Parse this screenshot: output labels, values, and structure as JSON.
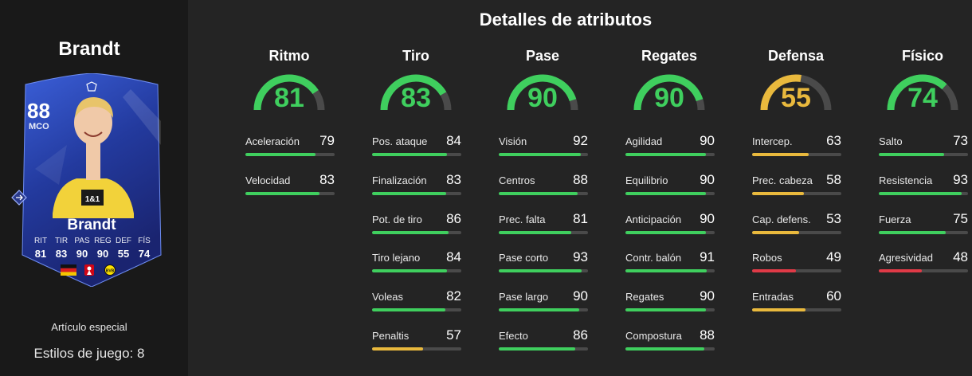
{
  "player": {
    "name": "Brandt",
    "card": {
      "rating": "88",
      "position": "MCO",
      "name": "Brandt",
      "stats": [
        {
          "label": "RIT",
          "value": "81"
        },
        {
          "label": "TIR",
          "value": "83"
        },
        {
          "label": "PAS",
          "value": "90"
        },
        {
          "label": "REG",
          "value": "90"
        },
        {
          "label": "DEF",
          "value": "55"
        },
        {
          "label": "FÍS",
          "value": "74"
        }
      ],
      "sponsor_text": "1&1"
    },
    "item_type": "Artículo especial",
    "playstyles": "Estilos de juego: 8"
  },
  "attributes": {
    "title": "Detalles de atributos",
    "colors": {
      "high": "#3fcf5e",
      "mid": "#e9b93d",
      "low": "#e03a47",
      "track": "#4a4a4a"
    },
    "categories": [
      {
        "title": "Ritmo",
        "value": 81,
        "stats": [
          {
            "label": "Aceleración",
            "value": 79
          },
          {
            "label": "Velocidad",
            "value": 83
          }
        ]
      },
      {
        "title": "Tiro",
        "value": 83,
        "stats": [
          {
            "label": "Pos. ataque",
            "value": 84
          },
          {
            "label": "Finalización",
            "value": 83
          },
          {
            "label": "Pot. de tiro",
            "value": 86
          },
          {
            "label": "Tiro lejano",
            "value": 84
          },
          {
            "label": "Voleas",
            "value": 82
          },
          {
            "label": "Penaltis",
            "value": 57
          }
        ]
      },
      {
        "title": "Pase",
        "value": 90,
        "stats": [
          {
            "label": "Visión",
            "value": 92
          },
          {
            "label": "Centros",
            "value": 88
          },
          {
            "label": "Prec. falta",
            "value": 81
          },
          {
            "label": "Pase corto",
            "value": 93
          },
          {
            "label": "Pase largo",
            "value": 90
          },
          {
            "label": "Efecto",
            "value": 86
          }
        ]
      },
      {
        "title": "Regates",
        "value": 90,
        "stats": [
          {
            "label": "Agilidad",
            "value": 90
          },
          {
            "label": "Equilibrio",
            "value": 90
          },
          {
            "label": "Anticipación",
            "value": 90
          },
          {
            "label": "Contr. balón",
            "value": 91
          },
          {
            "label": "Regates",
            "value": 90
          },
          {
            "label": "Compostura",
            "value": 88
          }
        ]
      },
      {
        "title": "Defensa",
        "value": 55,
        "stats": [
          {
            "label": "Intercep.",
            "value": 63
          },
          {
            "label": "Prec. cabeza",
            "value": 58
          },
          {
            "label": "Cap. defens.",
            "value": 53
          },
          {
            "label": "Robos",
            "value": 49
          },
          {
            "label": "Entradas",
            "value": 60
          }
        ]
      },
      {
        "title": "Físico",
        "value": 74,
        "stats": [
          {
            "label": "Salto",
            "value": 73
          },
          {
            "label": "Resistencia",
            "value": 93
          },
          {
            "label": "Fuerza",
            "value": 75
          },
          {
            "label": "Agresividad",
            "value": 48
          }
        ]
      }
    ]
  }
}
